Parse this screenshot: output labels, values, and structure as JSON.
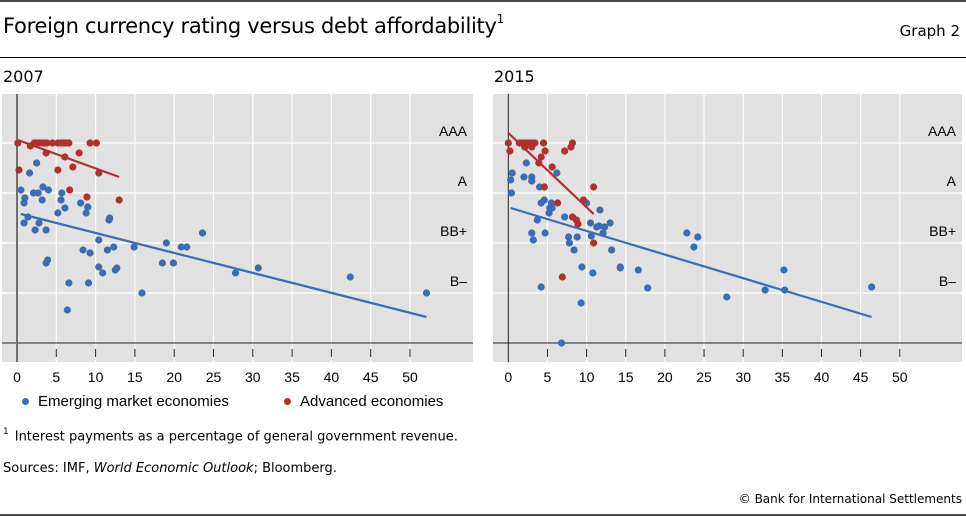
{
  "header": {
    "title": "Foreign currency rating versus debt affordability",
    "title_footnote_marker": "1",
    "graph_number": "Graph 2"
  },
  "legend": {
    "items": [
      {
        "label": "Emerging market economies",
        "color": "#3b6db3"
      },
      {
        "label": "Advanced economies",
        "color": "#b03030"
      }
    ]
  },
  "footnote": {
    "marker": "1",
    "text": "Interest payments as a percentage of general government revenue."
  },
  "sources": {
    "prefix": "Sources: IMF, ",
    "italic": "World Economic Outlook",
    "suffix": "; Bloomberg."
  },
  "copyright": "© Bank for International Settlements",
  "chart_data": [
    {
      "type": "scatter",
      "title": "2007",
      "xlabel": "",
      "ylabel": "",
      "xlim": [
        0,
        55
      ],
      "ylim": [
        0,
        25
      ],
      "x_ticks": [
        0,
        5,
        10,
        15,
        20,
        25,
        30,
        35,
        40,
        45,
        50
      ],
      "y_ticks": [
        {
          "value": 20,
          "label": "AAA"
        },
        {
          "value": 15,
          "label": "A"
        },
        {
          "value": 10,
          "label": "BB+"
        },
        {
          "value": 5,
          "label": "B–"
        }
      ],
      "grid": true,
      "legend_position": "bottom",
      "series": [
        {
          "name": "Advanced economies",
          "color": "#b03030",
          "points": [
            [
              0.1,
              20
            ],
            [
              1.7,
              19.7
            ],
            [
              2.2,
              20
            ],
            [
              2.5,
              20
            ],
            [
              2.8,
              20
            ],
            [
              3.2,
              20
            ],
            [
              3.5,
              20
            ],
            [
              3.8,
              20
            ],
            [
              4.5,
              20
            ],
            [
              5.2,
              20
            ],
            [
              5.6,
              20
            ],
            [
              5.9,
              20
            ],
            [
              6.2,
              20
            ],
            [
              6.6,
              20
            ],
            [
              9.3,
              20
            ],
            [
              10.1,
              20
            ],
            [
              3.7,
              19
            ],
            [
              7.9,
              19
            ],
            [
              6.1,
              18.6
            ],
            [
              0.25,
              17.3
            ],
            [
              5.2,
              17.3
            ],
            [
              7.1,
              17.6
            ],
            [
              10.4,
              17
            ],
            [
              6.7,
              15.3
            ],
            [
              8.9,
              14.6
            ],
            [
              13.0,
              14.3
            ]
          ],
          "trend": [
            [
              0.1,
              20.3
            ],
            [
              13.0,
              16.6
            ]
          ]
        },
        {
          "name": "Emerging market economies",
          "color": "#3b6db3",
          "points": [
            [
              2.5,
              18
            ],
            [
              1.6,
              17
            ],
            [
              0.5,
              15.3
            ],
            [
              1.0,
              14.5
            ],
            [
              0.9,
              14
            ],
            [
              2.1,
              15
            ],
            [
              2.7,
              15
            ],
            [
              3.3,
              15.6
            ],
            [
              4.0,
              15.3
            ],
            [
              3.2,
              14.3
            ],
            [
              5.7,
              15
            ],
            [
              5.6,
              14.3
            ],
            [
              6.1,
              13.5
            ],
            [
              5.2,
              13
            ],
            [
              8.1,
              14
            ],
            [
              9.0,
              13.6
            ],
            [
              8.8,
              13
            ],
            [
              11.8,
              12.5
            ],
            [
              11.7,
              12.3
            ],
            [
              1.4,
              12.6
            ],
            [
              0.9,
              12
            ],
            [
              2.8,
              12
            ],
            [
              2.3,
              11.3
            ],
            [
              3.7,
              11.3
            ],
            [
              10.4,
              10.3
            ],
            [
              8.4,
              9.3
            ],
            [
              9.3,
              9
            ],
            [
              11.5,
              9.3
            ],
            [
              12.3,
              9.6
            ],
            [
              14.9,
              9.6
            ],
            [
              3.9,
              8.3
            ],
            [
              3.7,
              8
            ],
            [
              10.4,
              7.6
            ],
            [
              10.9,
              7
            ],
            [
              12.5,
              7.3
            ],
            [
              12.7,
              7.5
            ],
            [
              6.6,
              6
            ],
            [
              9.1,
              6
            ],
            [
              15.9,
              5
            ],
            [
              6.4,
              3.3
            ],
            [
              19.0,
              10
            ],
            [
              18.5,
              8
            ],
            [
              19.9,
              8
            ],
            [
              20.9,
              9.6
            ],
            [
              21.6,
              9.6
            ],
            [
              23.6,
              11
            ],
            [
              27.8,
              7
            ],
            [
              30.7,
              7.5
            ],
            [
              42.4,
              6.6
            ],
            [
              52.1,
              5
            ]
          ],
          "trend": [
            [
              0.5,
              12.9
            ],
            [
              52.1,
              2.6
            ]
          ]
        }
      ]
    },
    {
      "type": "scatter",
      "title": "2015",
      "xlabel": "",
      "ylabel": "",
      "xlim": [
        0,
        58
      ],
      "ylim": [
        0,
        25
      ],
      "x_ticks": [
        0,
        5,
        10,
        15,
        20,
        25,
        30,
        35,
        40,
        45,
        50
      ],
      "y_ticks": [
        {
          "value": 20,
          "label": "AAA"
        },
        {
          "value": 15,
          "label": "A"
        },
        {
          "value": 10,
          "label": "BB+"
        },
        {
          "value": 5,
          "label": "B–"
        }
      ],
      "grid": true,
      "series": [
        {
          "name": "Advanced economies",
          "color": "#b03030",
          "points": [
            [
              0,
              20
            ],
            [
              0.2,
              19.2
            ],
            [
              1.4,
              20
            ],
            [
              1.7,
              20
            ],
            [
              2.0,
              20
            ],
            [
              2.4,
              20
            ],
            [
              2.7,
              20
            ],
            [
              3.1,
              20
            ],
            [
              3.4,
              20
            ],
            [
              2.1,
              19.6
            ],
            [
              3.0,
              19.6
            ],
            [
              4.5,
              20
            ],
            [
              4.7,
              19.2
            ],
            [
              7.2,
              19.2
            ],
            [
              8.0,
              19.6
            ],
            [
              8.2,
              20
            ],
            [
              4.2,
              18.6
            ],
            [
              3.9,
              18
            ],
            [
              5.6,
              17.6
            ],
            [
              4.6,
              15.6
            ],
            [
              10.9,
              15.6
            ],
            [
              6.3,
              14
            ],
            [
              9.6,
              14.3
            ],
            [
              8.2,
              12.6
            ],
            [
              8.7,
              12.3
            ],
            [
              8.9,
              11.9
            ],
            [
              10.9,
              10
            ],
            [
              6.9,
              6.6
            ]
          ],
          "trend": [
            [
              0,
              21
            ],
            [
              10.9,
              12.9
            ]
          ]
        },
        {
          "name": "Emerging market economies",
          "color": "#3b6db3",
          "points": [
            [
              2.3,
              18
            ],
            [
              0.5,
              17
            ],
            [
              0.3,
              16.3
            ],
            [
              2.0,
              16.6
            ],
            [
              3.0,
              16.6
            ],
            [
              3.0,
              16.2
            ],
            [
              6.2,
              17
            ],
            [
              0.4,
              15
            ],
            [
              4.0,
              15.6
            ],
            [
              4.2,
              14
            ],
            [
              4.6,
              14.3
            ],
            [
              5.5,
              14
            ],
            [
              5.3,
              13.5
            ],
            [
              5.6,
              13.5
            ],
            [
              5.2,
              13
            ],
            [
              7.2,
              12.6
            ],
            [
              3.7,
              12.3
            ],
            [
              10.0,
              14
            ],
            [
              11.7,
              13.3
            ],
            [
              10.5,
              12
            ],
            [
              11.3,
              11.6
            ],
            [
              11.6,
              11.7
            ],
            [
              12.3,
              11.6
            ],
            [
              13.0,
              12
            ],
            [
              3.0,
              11
            ],
            [
              3.2,
              10.3
            ],
            [
              4.7,
              11
            ],
            [
              7.7,
              10.6
            ],
            [
              8.8,
              10.6
            ],
            [
              10.6,
              10.7
            ],
            [
              12.1,
              11
            ],
            [
              7.8,
              10
            ],
            [
              8.4,
              9.3
            ],
            [
              13.2,
              9.3
            ],
            [
              9.4,
              7.6
            ],
            [
              10.8,
              7
            ],
            [
              14.3,
              7.6
            ],
            [
              14.3,
              7.5
            ],
            [
              16.6,
              7.3
            ],
            [
              17.8,
              5.5
            ],
            [
              4.2,
              5.6
            ],
            [
              9.3,
              4
            ],
            [
              6.8,
              0
            ],
            [
              22.8,
              11
            ],
            [
              24.2,
              10.6
            ],
            [
              23.7,
              9.6
            ],
            [
              27.9,
              4.6
            ],
            [
              32.8,
              5.3
            ],
            [
              35.2,
              7.3
            ],
            [
              35.3,
              5.3
            ],
            [
              46.4,
              5.6
            ]
          ],
          "trend": [
            [
              0.3,
              13.5
            ],
            [
              46.4,
              2.6
            ]
          ]
        }
      ]
    }
  ]
}
